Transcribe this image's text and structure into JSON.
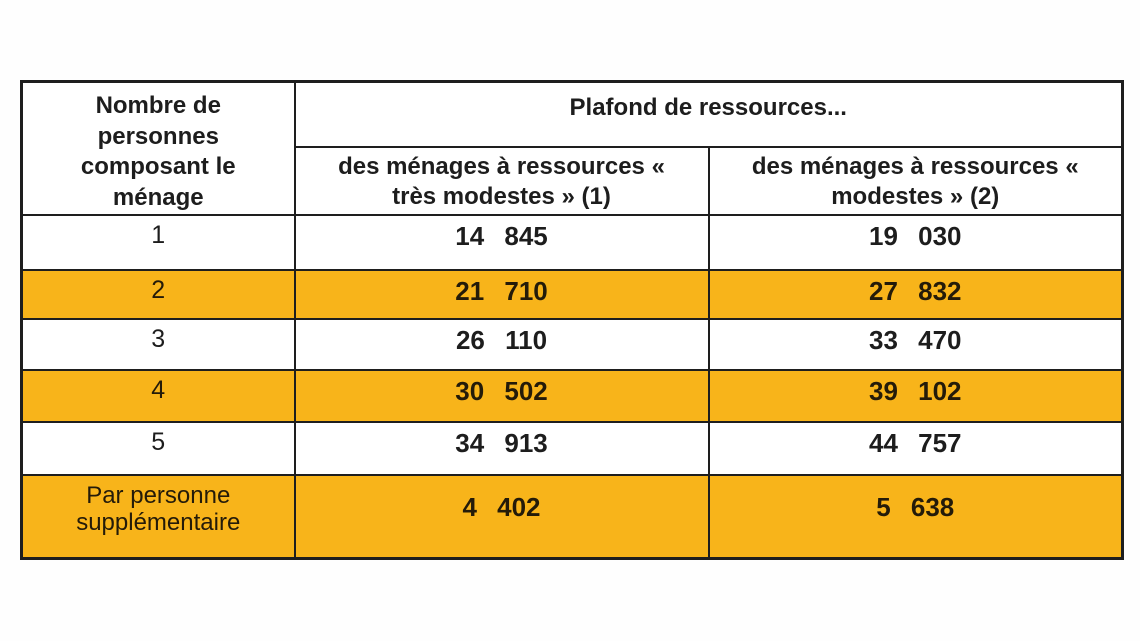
{
  "table": {
    "header": {
      "col_people": "Nombre de personnes composant le ménage",
      "plafond_title": "Plafond de ressources...",
      "col_tres_modestes": "des ménages à ressources « très modestes » (1)",
      "col_modestes": "des ménages à ressources « modestes » (2)"
    },
    "rows": [
      {
        "label": "1",
        "tres_modestes": "14 845",
        "modestes": "19 030",
        "highlighted": false
      },
      {
        "label": "2",
        "tres_modestes": "21 710",
        "modestes": "27 832",
        "highlighted": true
      },
      {
        "label": "3",
        "tres_modestes": "26 110",
        "modestes": "33 470",
        "highlighted": false
      },
      {
        "label": "4",
        "tres_modestes": "30 502",
        "modestes": "39 102",
        "highlighted": true
      },
      {
        "label": "5",
        "tres_modestes": "34 913",
        "modestes": "44 757",
        "highlighted": false
      },
      {
        "label": "Par personne supplémentaire",
        "tres_modestes": "4 402",
        "modestes": "5 638",
        "highlighted": true
      }
    ],
    "colors": {
      "highlight": "#F8B41A",
      "border": "#1e1e1e",
      "text": "#1d1d1d"
    }
  }
}
